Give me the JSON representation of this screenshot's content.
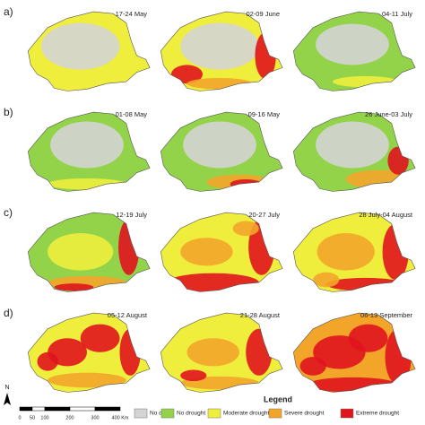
{
  "rows": [
    {
      "label": "a)",
      "panels": [
        "17-24 May",
        "02-09 June",
        "04-11 July"
      ]
    },
    {
      "label": "b)",
      "panels": [
        "01-08 May",
        "09-16 May",
        "26 June-03 July"
      ]
    },
    {
      "label": "c)",
      "panels": [
        "12-19 July",
        "20-27 July",
        "28 July-04 August"
      ]
    },
    {
      "label": "d)",
      "panels": [
        "05-12 August",
        "21-28 August",
        "06-13 September"
      ]
    }
  ],
  "legend": {
    "title": "Legend",
    "items": [
      {
        "label": "No data",
        "color": "#d4d4d4"
      },
      {
        "label": "No drought",
        "color": "#93d34a"
      },
      {
        "label": "Moderate drought",
        "color": "#f0ee3c"
      },
      {
        "label": "Severe drought",
        "color": "#f3a52a"
      },
      {
        "label": "Extreme drought",
        "color": "#e0141e"
      }
    ]
  },
  "scale": {
    "labels": [
      "0",
      "50",
      "100",
      "200",
      "300",
      "400 Km"
    ]
  },
  "north": "N"
}
